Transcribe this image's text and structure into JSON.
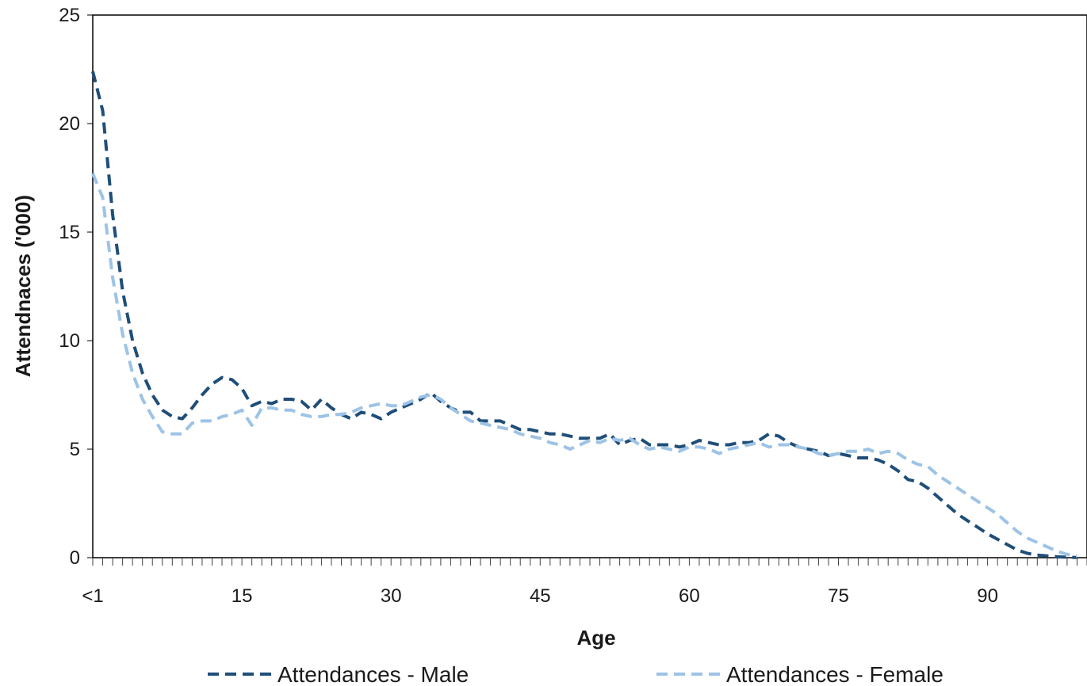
{
  "chart_data": {
    "type": "line",
    "title": "",
    "xlabel": "Age",
    "ylabel": "Attendnaces ('000)",
    "xlim": [
      0,
      100
    ],
    "ylim": [
      0,
      25
    ],
    "yticks": [
      0,
      5,
      10,
      15,
      20,
      25
    ],
    "xticks": [
      {
        "x": 0,
        "label": "<1"
      },
      {
        "x": 15,
        "label": "15"
      },
      {
        "x": 30,
        "label": "30"
      },
      {
        "x": 45,
        "label": "45"
      },
      {
        "x": 60,
        "label": "60"
      },
      {
        "x": 75,
        "label": "75"
      },
      {
        "x": 90,
        "label": "90"
      }
    ],
    "grid": false,
    "legend_position": "bottom",
    "series": [
      {
        "name": "Attendances - Male",
        "color": "#1f4e79",
        "style": "dashed",
        "x": [
          0,
          1,
          2,
          3,
          4,
          5,
          6,
          7,
          8,
          9,
          10,
          11,
          12,
          13,
          14,
          15,
          16,
          17,
          18,
          19,
          20,
          21,
          22,
          23,
          24,
          25,
          26,
          27,
          28,
          29,
          30,
          31,
          32,
          33,
          34,
          35,
          36,
          37,
          38,
          39,
          40,
          41,
          42,
          43,
          44,
          45,
          46,
          47,
          48,
          49,
          50,
          51,
          52,
          53,
          54,
          55,
          56,
          57,
          58,
          59,
          60,
          61,
          62,
          63,
          64,
          65,
          66,
          67,
          68,
          69,
          70,
          71,
          72,
          73,
          74,
          75,
          76,
          77,
          78,
          79,
          80,
          81,
          82,
          83,
          84,
          85,
          86,
          87,
          88,
          89,
          90,
          91,
          92,
          93,
          94,
          95,
          96,
          97,
          98,
          99
        ],
        "y": [
          22.4,
          20.6,
          15.8,
          12.3,
          10.0,
          8.5,
          7.5,
          6.8,
          6.5,
          6.4,
          6.9,
          7.5,
          8.0,
          8.3,
          8.2,
          7.8,
          7.0,
          7.2,
          7.1,
          7.3,
          7.3,
          7.2,
          6.8,
          7.3,
          6.9,
          6.6,
          6.4,
          6.7,
          6.6,
          6.4,
          6.7,
          6.9,
          7.1,
          7.3,
          7.6,
          7.2,
          6.9,
          6.7,
          6.7,
          6.3,
          6.3,
          6.3,
          6.1,
          5.9,
          5.9,
          5.8,
          5.7,
          5.7,
          5.6,
          5.5,
          5.5,
          5.5,
          5.7,
          5.2,
          5.4,
          5.5,
          5.2,
          5.2,
          5.2,
          5.1,
          5.2,
          5.4,
          5.3,
          5.2,
          5.2,
          5.3,
          5.3,
          5.4,
          5.7,
          5.6,
          5.3,
          5.1,
          5.0,
          4.9,
          4.7,
          4.8,
          4.7,
          4.6,
          4.6,
          4.5,
          4.3,
          4.0,
          3.6,
          3.5,
          3.2,
          2.8,
          2.4,
          2.0,
          1.7,
          1.4,
          1.1,
          0.85,
          0.6,
          0.35,
          0.2,
          0.12,
          0.08,
          0.04,
          0.02,
          0.01
        ]
      },
      {
        "name": "Attendances - Female",
        "color": "#9dc3e6",
        "style": "dashed",
        "x": [
          0,
          1,
          2,
          3,
          4,
          5,
          6,
          7,
          8,
          9,
          10,
          11,
          12,
          13,
          14,
          15,
          16,
          17,
          18,
          19,
          20,
          21,
          22,
          23,
          24,
          25,
          26,
          27,
          28,
          29,
          30,
          31,
          32,
          33,
          34,
          35,
          36,
          37,
          38,
          39,
          40,
          41,
          42,
          43,
          44,
          45,
          46,
          47,
          48,
          49,
          50,
          51,
          52,
          53,
          54,
          55,
          56,
          57,
          58,
          59,
          60,
          61,
          62,
          63,
          64,
          65,
          66,
          67,
          68,
          69,
          70,
          71,
          72,
          73,
          74,
          75,
          76,
          77,
          78,
          79,
          80,
          81,
          82,
          83,
          84,
          85,
          86,
          87,
          88,
          89,
          90,
          91,
          92,
          93,
          94,
          95,
          96,
          97,
          98,
          99
        ],
        "y": [
          17.7,
          16.6,
          12.9,
          10.3,
          8.5,
          7.3,
          6.5,
          5.8,
          5.7,
          5.7,
          6.2,
          6.3,
          6.3,
          6.5,
          6.6,
          6.8,
          6.1,
          6.9,
          6.9,
          6.8,
          6.8,
          6.6,
          6.5,
          6.5,
          6.6,
          6.6,
          6.7,
          6.9,
          7.0,
          7.1,
          7.0,
          7.0,
          7.2,
          7.4,
          7.5,
          7.3,
          6.9,
          6.6,
          6.3,
          6.2,
          6.1,
          6.0,
          5.9,
          5.7,
          5.6,
          5.5,
          5.3,
          5.2,
          5.0,
          5.2,
          5.4,
          5.3,
          5.5,
          5.4,
          5.5,
          5.2,
          5.0,
          5.1,
          5.0,
          4.9,
          5.1,
          5.1,
          5.0,
          4.8,
          5.0,
          5.1,
          5.2,
          5.3,
          5.1,
          5.2,
          5.2,
          5.1,
          5.0,
          4.8,
          4.7,
          4.8,
          4.9,
          4.9,
          5.0,
          4.8,
          4.9,
          4.8,
          4.5,
          4.3,
          4.2,
          3.8,
          3.5,
          3.2,
          2.9,
          2.6,
          2.3,
          2.0,
          1.6,
          1.2,
          0.9,
          0.7,
          0.5,
          0.3,
          0.15,
          0.08
        ]
      }
    ]
  }
}
